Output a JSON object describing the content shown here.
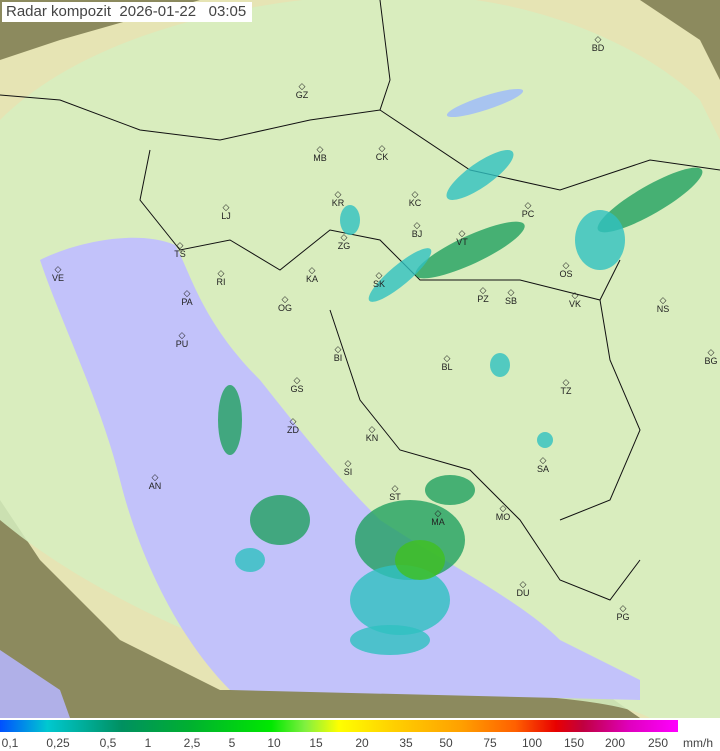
{
  "title": {
    "product": "Radar kompozit",
    "date": "2026-01-22",
    "time": "03:05"
  },
  "cities": [
    "GZ",
    "MB",
    "CK",
    "KR",
    "KC",
    "LJ",
    "ZG",
    "TS",
    "VE",
    "RI",
    "KA",
    "SK",
    "VT",
    "BJ",
    "PC",
    "OS",
    "VK",
    "NS",
    "PZ",
    "SB",
    "PA",
    "OG",
    "PU",
    "BI",
    "BL",
    "BG",
    "TZ",
    "GS",
    "ZD",
    "KN",
    "SA",
    "AN",
    "SI",
    "ST",
    "MA",
    "MO",
    "DU",
    "PG",
    "BD"
  ],
  "legend": {
    "ticks": [
      "0,1",
      "0,25",
      "0,5",
      "1",
      "2,5",
      "5",
      "10",
      "15",
      "20",
      "35",
      "50",
      "75",
      "100",
      "150",
      "200",
      "250"
    ],
    "unit": "mm/h"
  },
  "colors": {
    "sea": "#c0c0f8",
    "radar_coverage": "#d8f0c0",
    "outside": "#8a8a5a",
    "rain_light": "#30c0c0",
    "rain_moderate": "#20a060",
    "rain_heavy": "#40c020"
  }
}
